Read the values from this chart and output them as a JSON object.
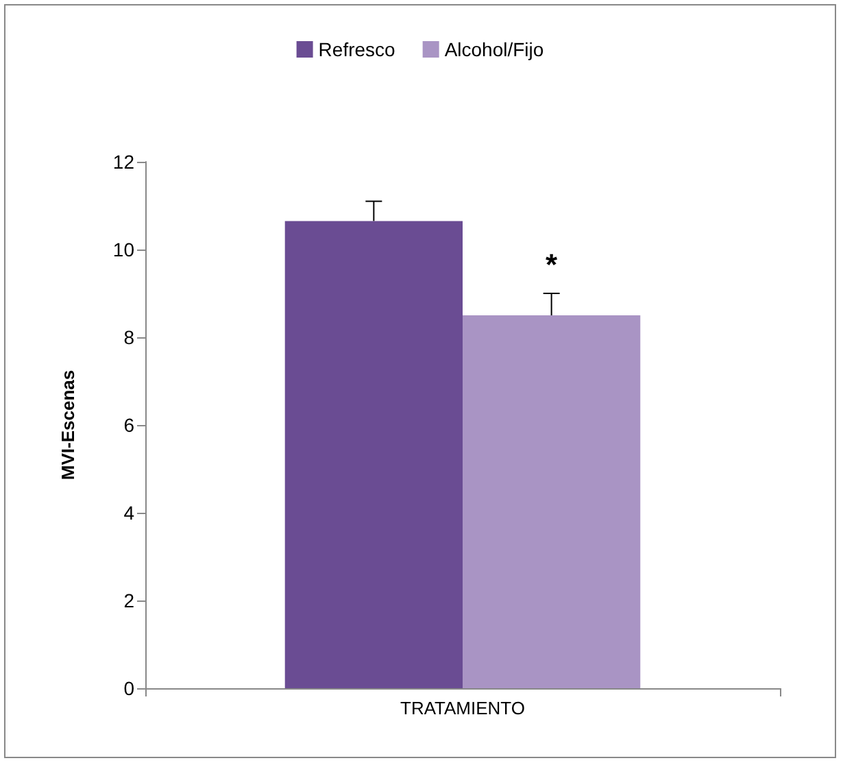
{
  "chart_data": {
    "type": "bar",
    "ylabel": "MVI-Escenas",
    "categories": [
      "TRATAMIENTO"
    ],
    "series": [
      {
        "name": "Refresco",
        "color": "#6a4c93",
        "values": [
          10.65
        ],
        "errors": [
          [
            10.65,
            11.1
          ]
        ]
      },
      {
        "name": "Alcohol/Fijo",
        "color": "#a994c4",
        "values": [
          8.5
        ],
        "errors": [
          [
            8.5,
            9.0
          ]
        ]
      }
    ],
    "ylim": [
      0,
      12
    ],
    "yticks": [
      0,
      2,
      4,
      6,
      8,
      10,
      12
    ],
    "grid": false,
    "legend": "top",
    "annotations": [
      "*"
    ]
  }
}
